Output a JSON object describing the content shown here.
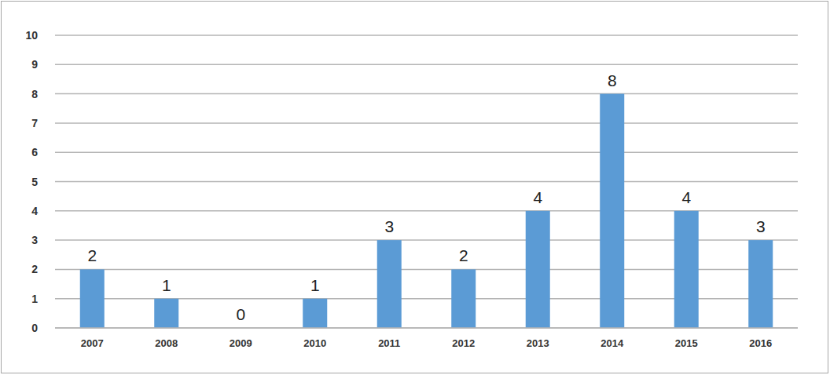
{
  "chart_data": {
    "type": "bar",
    "categories": [
      "2007",
      "2008",
      "2009",
      "2010",
      "2011",
      "2012",
      "2013",
      "2014",
      "2015",
      "2016"
    ],
    "values": [
      2,
      1,
      0,
      1,
      3,
      2,
      4,
      8,
      4,
      3
    ],
    "color": "#5b9bd5",
    "ylim": [
      0,
      10
    ],
    "yticks": [
      0,
      1,
      2,
      3,
      4,
      5,
      6,
      7,
      8,
      9,
      10
    ],
    "grid": true,
    "data_labels": true
  }
}
